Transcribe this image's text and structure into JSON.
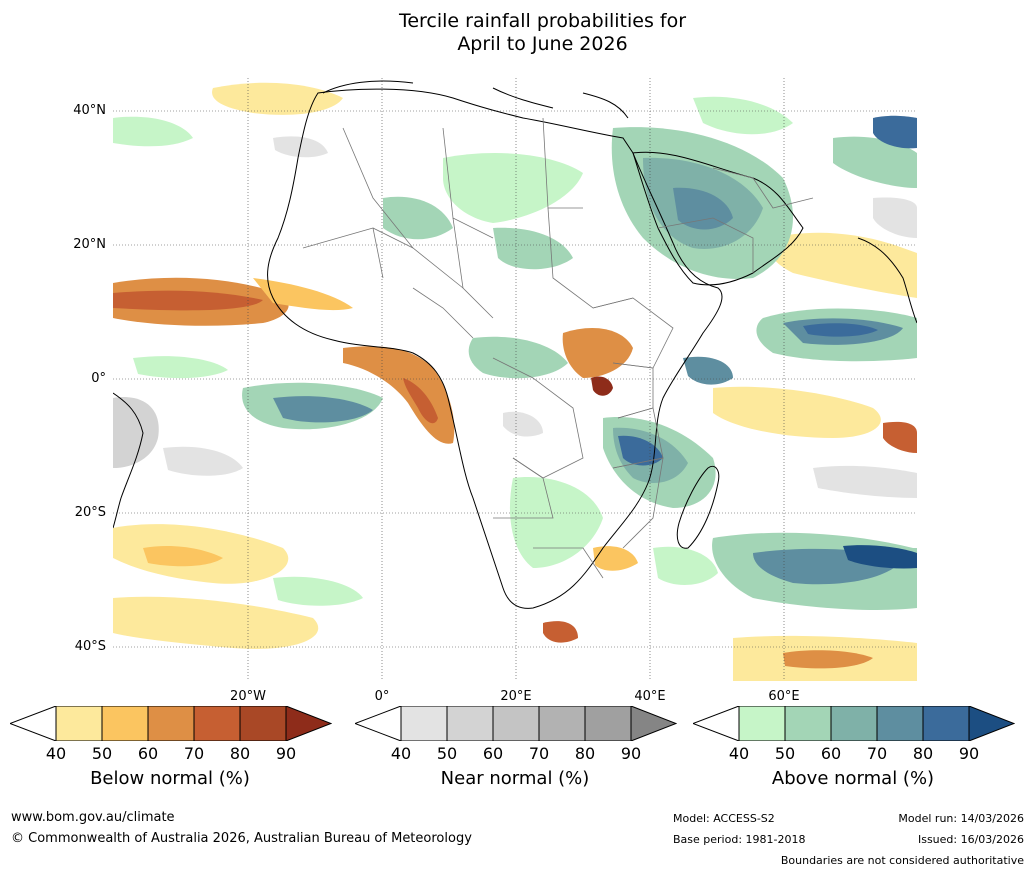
{
  "title": {
    "line1": "Tercile rainfall probabilities for",
    "line2": "April to June 2026"
  },
  "map": {
    "lat_labels": [
      "40°N",
      "20°N",
      "0°",
      "20°S",
      "40°S"
    ],
    "lon_labels": [
      "20°W",
      "0°",
      "20°E",
      "40°E",
      "60°E"
    ]
  },
  "colorbars": [
    {
      "title": "Below normal (%)",
      "ticks": [
        "40",
        "50",
        "60",
        "70",
        "80",
        "90"
      ],
      "colors": [
        "#fde99c",
        "#fbc560",
        "#de8f45",
        "#c65f32",
        "#a94826",
        "#8e2c1a"
      ]
    },
    {
      "title": "Near normal (%)",
      "ticks": [
        "40",
        "50",
        "60",
        "70",
        "80",
        "90"
      ],
      "colors": [
        "#e3e3e3",
        "#d3d3d3",
        "#c4c4c4",
        "#b2b2b2",
        "#a0a0a0",
        "#858585"
      ]
    },
    {
      "title": "Above normal (%)",
      "ticks": [
        "40",
        "50",
        "60",
        "70",
        "80",
        "90"
      ],
      "colors": [
        "#c6f5c8",
        "#a3d5b6",
        "#7fb1a8",
        "#5e8ea0",
        "#3b6b9b",
        "#1c4e82"
      ]
    }
  ],
  "footer": {
    "website": "www.bom.gov.au/climate",
    "copyright": "© Commonwealth of Australia 2026, Australian Bureau of Meteorology",
    "model": "Model: ACCESS-S2",
    "base_period": "Base period: 1981-2018",
    "model_run": "Model run: 14/03/2026",
    "issued": "Issued: 16/03/2026",
    "disclaimer": "Boundaries are not considered authoritative"
  }
}
